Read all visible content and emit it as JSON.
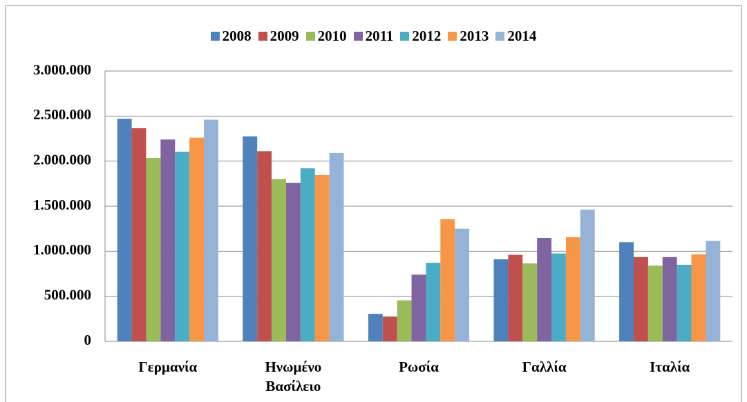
{
  "chart_data": {
    "type": "bar",
    "categories": [
      "Γερμανία",
      "Ηνωμένο Βασίλειο",
      "Ρωσία",
      "Γαλλία",
      "Ιταλία"
    ],
    "series": [
      {
        "name": "2008",
        "color": "#4F81BD",
        "values": [
          2470000,
          2275000,
          305000,
          910000,
          1100000
        ]
      },
      {
        "name": "2009",
        "color": "#C0504D",
        "values": [
          2365000,
          2110000,
          275000,
          960000,
          935000
        ]
      },
      {
        "name": "2010",
        "color": "#9BBB59",
        "values": [
          2035000,
          1800000,
          455000,
          865000,
          840000
        ]
      },
      {
        "name": "2011",
        "color": "#8064A2",
        "values": [
          2240000,
          1760000,
          740000,
          1148000,
          935000
        ]
      },
      {
        "name": "2012",
        "color": "#4BACC6",
        "values": [
          2105000,
          1920000,
          872000,
          975000,
          850000
        ]
      },
      {
        "name": "2013",
        "color": "#F79646",
        "values": [
          2260000,
          1845000,
          1355000,
          1155000,
          965000
        ]
      },
      {
        "name": "2014",
        "color": "#95B3D7",
        "values": [
          2460000,
          2090000,
          1250000,
          1462000,
          1115000
        ]
      }
    ],
    "ylim": [
      0,
      3000000
    ],
    "yticks": [
      0,
      {
        "value": 500000,
        "label": "500.000"
      },
      {
        "value": 1000000,
        "label": "1.000.000"
      },
      {
        "value": 1500000,
        "label": "1.500.000"
      },
      {
        "value": 2000000,
        "label": "2.000.000"
      },
      {
        "value": 2500000,
        "label": "2.500.000"
      },
      {
        "value": 3000000,
        "label": "3.000.000"
      }
    ],
    "grid": true,
    "legend": "top"
  }
}
